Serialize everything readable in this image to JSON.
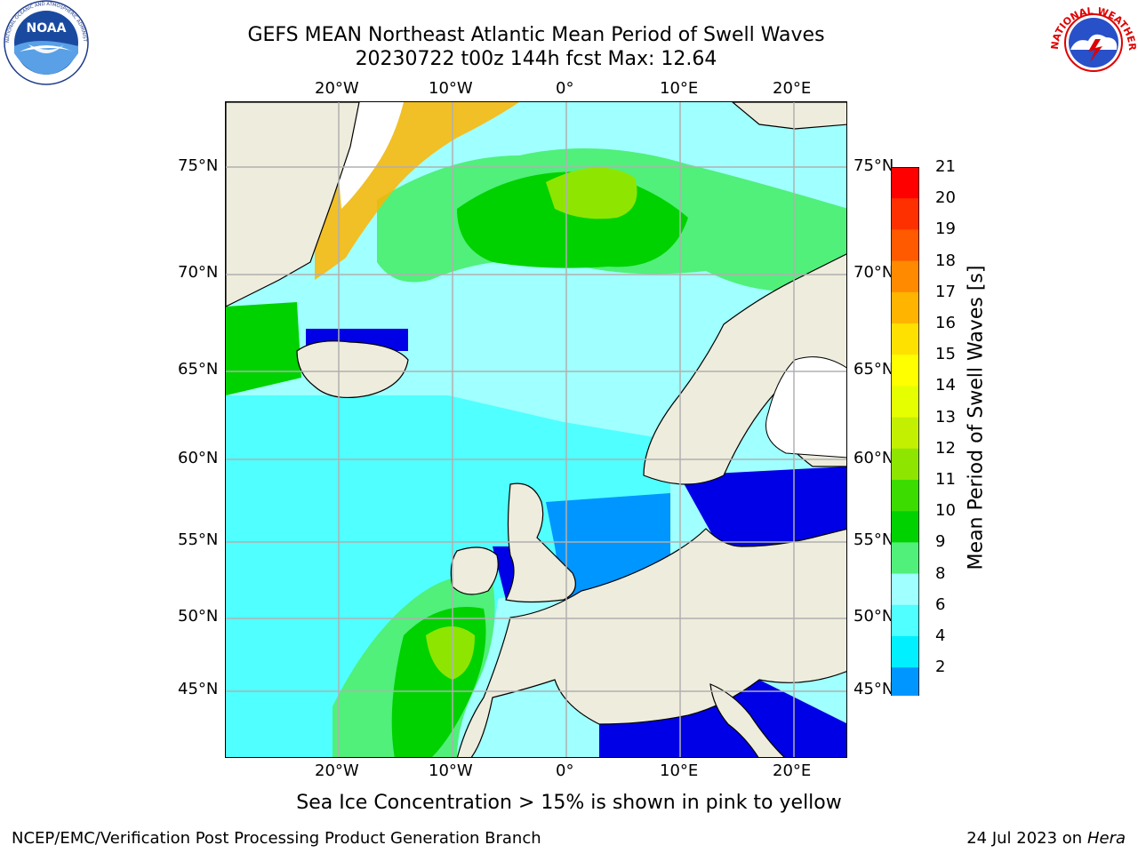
{
  "header": {
    "title_line1": "GEFS MEAN Northeast Atlantic Mean Period of Swell Waves",
    "title_line2": "20230722 t00z 144h fcst   Max: 12.64"
  },
  "logos": {
    "left_text": "NOAA",
    "left_ring_text": "NATIONAL OCEANIC AND ATMOSPHERIC ADMINISTRATION · U.S. DEPARTMENT OF COMMERCE",
    "right_ring_text": "NATIONAL WEATHER SERVICE"
  },
  "map": {
    "lon_labels": [
      "20°W",
      "10°W",
      "0°",
      "10°E",
      "20°E"
    ],
    "lat_labels": [
      "75°N",
      "70°N",
      "65°N",
      "60°N",
      "55°N",
      "50°N",
      "45°N"
    ],
    "land_color": "#eeecdc",
    "grid_color": "#b0b0b0"
  },
  "colorbar": {
    "title": "Mean Period of Swell Waves [s]",
    "ticks": [
      "21",
      "20",
      "19",
      "18",
      "17",
      "16",
      "15",
      "14",
      "13",
      "12",
      "11",
      "10",
      "9",
      "8",
      "6",
      "4",
      "2"
    ],
    "colors": [
      "#ff0000",
      "#ff3000",
      "#ff5a00",
      "#ff8a00",
      "#ffb400",
      "#ffe100",
      "#ffff00",
      "#e6ff00",
      "#c3f000",
      "#8ee600",
      "#3cdc00",
      "#00d200",
      "#50f07a",
      "#a0ffff",
      "#50ffff",
      "#00f0ff",
      "#0096ff",
      "#0000e6"
    ]
  },
  "note": "Sea Ice Concentration > 15% is shown in pink to yellow",
  "footer": {
    "left": "NCEP/EMC/Verification Post Processing Product Generation Branch",
    "right_prefix": "24 Jul 2023 on ",
    "right_machine": "Hera"
  }
}
